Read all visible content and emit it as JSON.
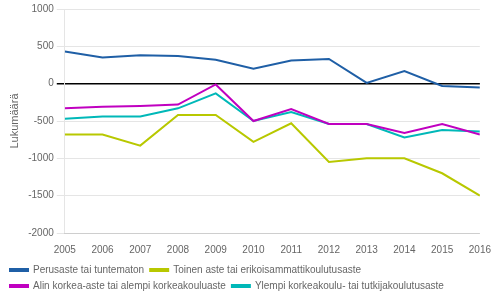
{
  "chart_data": {
    "type": "line",
    "y_label": "Lukumäärä",
    "x": [
      2005,
      2006,
      2007,
      2008,
      2009,
      2010,
      2011,
      2012,
      2013,
      2014,
      2015,
      2016
    ],
    "series": [
      {
        "name": "Perusaste tai tuntematon",
        "color": "#1f5fa6",
        "values": [
          430,
          350,
          380,
          370,
          320,
          200,
          310,
          330,
          10,
          170,
          -30,
          -50
        ]
      },
      {
        "name": "Toinen aste tai erikoisammattikoulutusaste",
        "color": "#b8c800",
        "values": [
          -680,
          -680,
          -830,
          -420,
          -420,
          -780,
          -530,
          -1050,
          -1000,
          -1000,
          -1200,
          -1500
        ]
      },
      {
        "name": "Alin korkea-aste tai alempi korkeakouluaste",
        "color": "#c000c0",
        "values": [
          -330,
          -310,
          -300,
          -280,
          -10,
          -500,
          -340,
          -540,
          -540,
          -660,
          -540,
          -680
        ]
      },
      {
        "name": "Ylempi korkeakoulu- tai tutkijakoulutusaste",
        "color": "#00b8b8",
        "values": [
          -470,
          -440,
          -440,
          -330,
          -130,
          -500,
          -380,
          -540,
          -540,
          -720,
          -620,
          -640
        ]
      }
    ],
    "xlim": [
      2005,
      2016
    ],
    "xticks": [
      2005,
      2006,
      2007,
      2008,
      2009,
      2010,
      2011,
      2012,
      2013,
      2014,
      2015,
      2016
    ],
    "ylim": [
      -2000,
      1000
    ],
    "yticks": [
      -2000,
      -1500,
      -1000,
      -500,
      0,
      500,
      1000
    ],
    "grid": "y",
    "legend": "lower left"
  }
}
